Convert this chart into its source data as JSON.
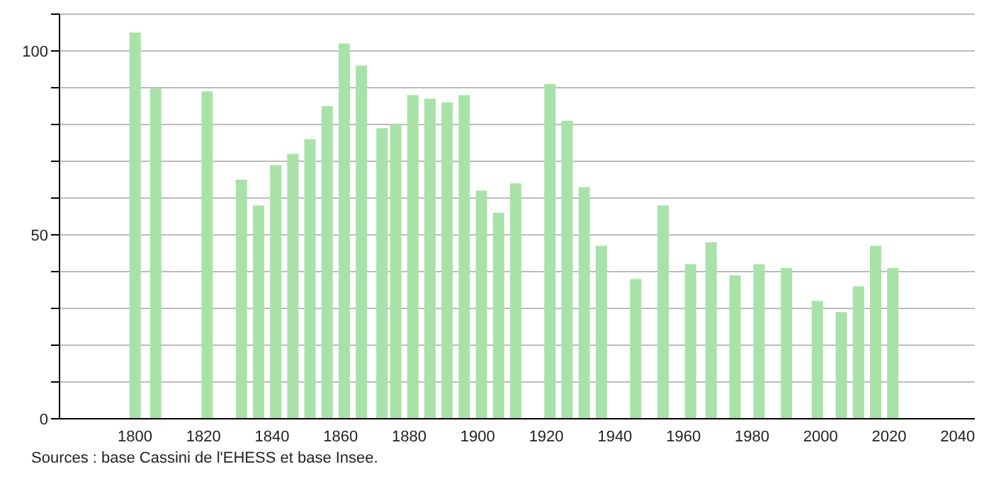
{
  "chart_data": {
    "type": "bar",
    "x": [
      1800,
      1806,
      1821,
      1831,
      1836,
      1841,
      1846,
      1851,
      1856,
      1861,
      1866,
      1872,
      1876,
      1881,
      1886,
      1891,
      1896,
      1901,
      1906,
      1911,
      1921,
      1926,
      1931,
      1936,
      1946,
      1954,
      1962,
      1968,
      1975,
      1982,
      1990,
      1999,
      2006,
      2011,
      2016,
      2021
    ],
    "values": [
      105,
      90,
      89,
      65,
      58,
      69,
      72,
      76,
      85,
      102,
      96,
      79,
      80,
      88,
      87,
      86,
      88,
      62,
      56,
      64,
      91,
      81,
      63,
      47,
      38,
      58,
      42,
      48,
      39,
      42,
      41,
      32,
      29,
      36,
      47,
      41
    ],
    "color": "#a8e2a8",
    "xlim": [
      1778,
      2045
    ],
    "xticks": [
      1800,
      1820,
      1840,
      1860,
      1880,
      1900,
      1920,
      1940,
      1960,
      1980,
      2000,
      2020,
      2040
    ],
    "ylim": [
      0,
      110
    ],
    "yticks": [
      0,
      {
        "value": 10,
        "label": null
      },
      {
        "value": 20,
        "label": null
      },
      {
        "value": 30,
        "label": null
      },
      {
        "value": 40,
        "label": null
      },
      50,
      {
        "value": 60,
        "label": null
      },
      {
        "value": 70,
        "label": null
      },
      {
        "value": 80,
        "label": null
      },
      {
        "value": 90,
        "label": null
      },
      100,
      {
        "value": 110,
        "label": null
      }
    ],
    "grid": "y",
    "annotations": [
      "Sources : base Cassini de l'EHESS et base Insee."
    ]
  }
}
